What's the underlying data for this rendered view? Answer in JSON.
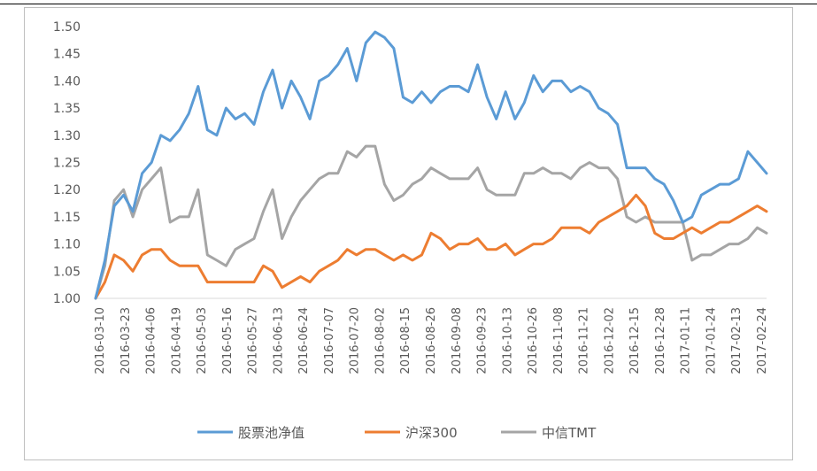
{
  "chart_data": {
    "type": "line",
    "title": "",
    "xlabel": "",
    "ylabel": "",
    "ylim": [
      1.0,
      1.5
    ],
    "yticks": [
      "1.00",
      "1.05",
      "1.10",
      "1.15",
      "1.20",
      "1.25",
      "1.30",
      "1.35",
      "1.40",
      "1.45",
      "1.50"
    ],
    "grid": false,
    "legend": "bottom",
    "x_tick_labels": [
      "2016-03-10",
      "2016-03-23",
      "2016-04-06",
      "2016-04-19",
      "2016-05-03",
      "2016-05-16",
      "2016-05-27",
      "2016-06-13",
      "2016-06-24",
      "2016-07-07",
      "2016-07-20",
      "2016-08-02",
      "2016-08-15",
      "2016-08-26",
      "2016-09-08",
      "2016-09-23",
      "2016-10-13",
      "2016-10-26",
      "2016-11-08",
      "2016-11-21",
      "2016-12-02",
      "2016-12-15",
      "2016-12-28",
      "2017-01-11",
      "2017-01-24",
      "2017-02-13",
      "2017-02-24"
    ],
    "series": [
      {
        "name": "股票池净值",
        "color": "#5b9bd5",
        "values": [
          1.0,
          1.07,
          1.17,
          1.19,
          1.16,
          1.23,
          1.25,
          1.3,
          1.29,
          1.31,
          1.34,
          1.39,
          1.31,
          1.3,
          1.35,
          1.33,
          1.34,
          1.32,
          1.38,
          1.42,
          1.35,
          1.4,
          1.37,
          1.33,
          1.4,
          1.41,
          1.43,
          1.46,
          1.4,
          1.47,
          1.49,
          1.48,
          1.46,
          1.37,
          1.36,
          1.38,
          1.36,
          1.38,
          1.39,
          1.39,
          1.38,
          1.43,
          1.37,
          1.33,
          1.38,
          1.33,
          1.36,
          1.41,
          1.38,
          1.4,
          1.4,
          1.38,
          1.39,
          1.38,
          1.35,
          1.34,
          1.32,
          1.24,
          1.24,
          1.24,
          1.22,
          1.21,
          1.18,
          1.14,
          1.15,
          1.19,
          1.2,
          1.21,
          1.21,
          1.22,
          1.27,
          1.25,
          1.23
        ]
      },
      {
        "name": "沪深300",
        "color": "#ed7d31",
        "values": [
          1.0,
          1.03,
          1.08,
          1.07,
          1.05,
          1.08,
          1.09,
          1.09,
          1.07,
          1.06,
          1.06,
          1.06,
          1.03,
          1.03,
          1.03,
          1.03,
          1.03,
          1.03,
          1.06,
          1.05,
          1.02,
          1.03,
          1.04,
          1.03,
          1.05,
          1.06,
          1.07,
          1.09,
          1.08,
          1.09,
          1.09,
          1.08,
          1.07,
          1.08,
          1.07,
          1.08,
          1.12,
          1.11,
          1.09,
          1.1,
          1.1,
          1.11,
          1.09,
          1.09,
          1.1,
          1.08,
          1.09,
          1.1,
          1.1,
          1.11,
          1.13,
          1.13,
          1.13,
          1.12,
          1.14,
          1.15,
          1.16,
          1.17,
          1.19,
          1.17,
          1.12,
          1.11,
          1.11,
          1.12,
          1.13,
          1.12,
          1.13,
          1.14,
          1.14,
          1.15,
          1.16,
          1.17,
          1.16
        ]
      },
      {
        "name": "中信TMT",
        "color": "#a5a5a5",
        "values": [
          1.0,
          1.06,
          1.18,
          1.2,
          1.15,
          1.2,
          1.22,
          1.24,
          1.14,
          1.15,
          1.15,
          1.2,
          1.08,
          1.07,
          1.06,
          1.09,
          1.1,
          1.11,
          1.16,
          1.2,
          1.11,
          1.15,
          1.18,
          1.2,
          1.22,
          1.23,
          1.23,
          1.27,
          1.26,
          1.28,
          1.28,
          1.21,
          1.18,
          1.19,
          1.21,
          1.22,
          1.24,
          1.23,
          1.22,
          1.22,
          1.22,
          1.24,
          1.2,
          1.19,
          1.19,
          1.19,
          1.23,
          1.23,
          1.24,
          1.23,
          1.23,
          1.22,
          1.24,
          1.25,
          1.24,
          1.24,
          1.22,
          1.15,
          1.14,
          1.15,
          1.14,
          1.14,
          1.14,
          1.14,
          1.07,
          1.08,
          1.08,
          1.09,
          1.1,
          1.1,
          1.11,
          1.13,
          1.12
        ]
      }
    ]
  }
}
